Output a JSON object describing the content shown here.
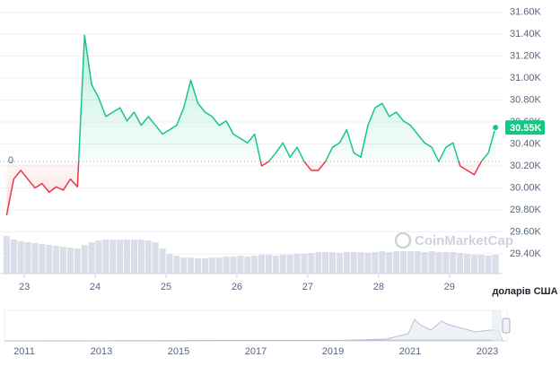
{
  "chart_data": {
    "type": "line",
    "x": [
      22.75,
      22.85,
      22.95,
      23.05,
      23.15,
      23.25,
      23.35,
      23.45,
      23.55,
      23.65,
      23.75,
      23.85,
      23.95,
      24.05,
      24.15,
      24.25,
      24.35,
      24.45,
      24.55,
      24.65,
      24.75,
      24.85,
      24.95,
      25.05,
      25.15,
      25.25,
      25.35,
      25.45,
      25.55,
      25.65,
      25.75,
      25.85,
      25.95,
      26.05,
      26.15,
      26.25,
      26.35,
      26.45,
      26.55,
      26.65,
      26.75,
      26.85,
      26.95,
      27.05,
      27.15,
      27.25,
      27.35,
      27.45,
      27.55,
      27.65,
      27.75,
      27.85,
      27.95,
      28.05,
      28.15,
      28.25,
      28.35,
      28.45,
      28.55,
      28.65,
      28.75,
      28.85,
      28.95,
      29.05,
      29.15,
      29.25,
      29.35,
      29.45,
      29.55,
      29.65
    ],
    "series": [
      {
        "values": [
          29750,
          30080,
          30160,
          30080,
          30000,
          30040,
          29960,
          30010,
          29980,
          30080,
          30010,
          31390,
          30940,
          30820,
          30650,
          30690,
          30730,
          30610,
          30690,
          30570,
          30650,
          30570,
          30490,
          30530,
          30570,
          30730,
          30980,
          30770,
          30690,
          30650,
          30570,
          30610,
          30490,
          30450,
          30410,
          30490,
          30200,
          30240,
          30320,
          30410,
          30280,
          30370,
          30240,
          30160,
          30160,
          30240,
          30370,
          30410,
          30530,
          30320,
          30280,
          30570,
          30730,
          30770,
          30650,
          30690,
          30610,
          30570,
          30490,
          30410,
          30370,
          30240,
          30370,
          30410,
          30200,
          30160,
          30120,
          30240,
          30320,
          30550
        ],
        "color_up": "#16c784",
        "color_down": "#ea3943"
      }
    ],
    "baseline": 30240,
    "baseline_label": "0",
    "current_price": {
      "value": 30550,
      "label": "30.55K"
    },
    "volume": [
      42,
      38,
      36,
      35,
      34,
      33,
      32,
      31,
      30,
      29,
      28,
      32,
      35,
      37,
      38,
      38,
      38,
      38,
      38,
      38,
      37,
      35,
      28,
      22,
      20,
      18,
      18,
      17,
      17,
      18,
      18,
      19,
      19,
      20,
      19,
      20,
      21,
      21,
      20,
      21,
      21,
      22,
      22,
      23,
      24,
      24,
      24,
      23,
      24,
      24,
      24,
      23,
      24,
      25,
      24,
      25,
      25,
      25,
      25,
      24,
      25,
      24,
      24,
      24,
      23,
      22,
      21,
      21,
      20,
      21
    ],
    "xlim": [
      22.72,
      29.75
    ],
    "xticks": [
      23,
      24,
      25,
      26,
      27,
      28,
      29
    ],
    "ylim": [
      29220,
      31670
    ],
    "yticks": [
      {
        "value": 29400,
        "label": "29.40K"
      },
      {
        "value": 29600,
        "label": "29.60K"
      },
      {
        "value": 29800,
        "label": "29.80K"
      },
      {
        "value": 30000,
        "label": "30.00K"
      },
      {
        "value": 30200,
        "label": "30.20K"
      },
      {
        "value": 30400,
        "label": "30.40K"
      },
      {
        "value": 30600,
        "label": "30.60K"
      },
      {
        "value": 30800,
        "label": "30.80K"
      },
      {
        "value": 31000,
        "label": "31.00K"
      },
      {
        "value": 31200,
        "label": "31.20K"
      },
      {
        "value": 31400,
        "label": "31.40K"
      },
      {
        "value": 31600,
        "label": "31.60K"
      }
    ],
    "grid": true,
    "currency_label": "доларів США",
    "watermark": "CoinMarketCap",
    "navigator_ticks": [
      "2011",
      "2013",
      "2015",
      "2017",
      "2019",
      "2021",
      "2023"
    ]
  }
}
